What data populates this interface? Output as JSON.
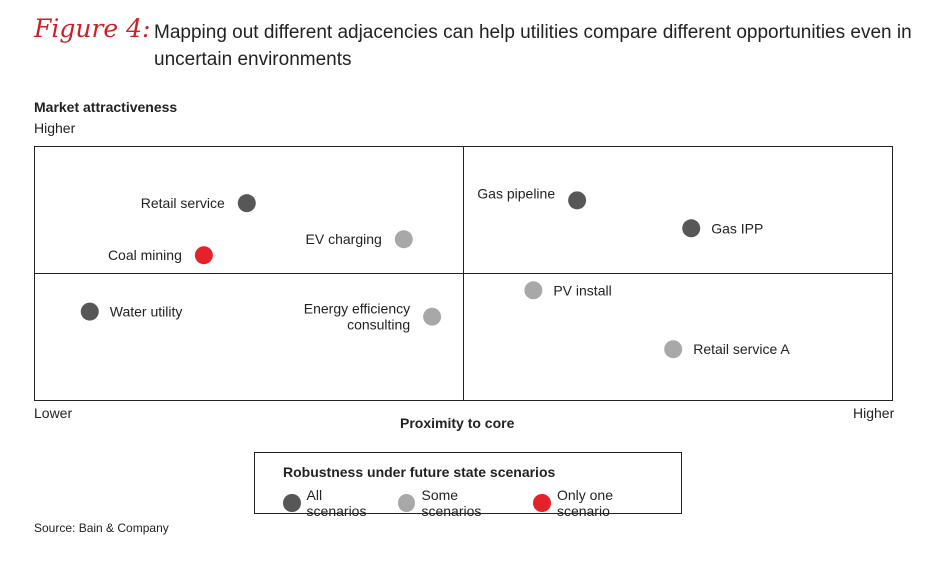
{
  "figure": {
    "label": "Figure 4:",
    "title": "Mapping out different adjacencies can help utilities compare different opportunities even in uncertain environments"
  },
  "chart_data": {
    "type": "scatter",
    "ylabel": "Market attractiveness",
    "y_high_label": "Higher",
    "xlabel": "Proximity to core",
    "x_low_label": "Lower",
    "x_high_label": "Higher",
    "xlim": [
      0,
      100
    ],
    "ylim": [
      0,
      100
    ],
    "grid": "2x2 quadrants",
    "legend_title": "Robustness under future state scenarios",
    "legend": [
      {
        "key": "all",
        "label": "All scenarios",
        "color": "#575757"
      },
      {
        "key": "some",
        "label": "Some scenarios",
        "color": "#a8a8a8"
      },
      {
        "key": "one",
        "label": "Only one scenario",
        "color": "#e4222a"
      }
    ],
    "points": [
      {
        "label": "Retail service",
        "x": 24.8,
        "y": 77.5,
        "category": "all",
        "label_side": "left"
      },
      {
        "label": "Coal mining",
        "x": 19.8,
        "y": 57.0,
        "category": "one",
        "label_side": "left"
      },
      {
        "label": "EV charging",
        "x": 43.1,
        "y": 63.3,
        "category": "some",
        "label_side": "left"
      },
      {
        "label": "Gas pipeline",
        "x": 63.3,
        "y": 78.6,
        "category": "all",
        "label_side": "left"
      },
      {
        "label": "Gas IPP",
        "x": 76.6,
        "y": 67.6,
        "category": "all",
        "label_side": "right"
      },
      {
        "label": "Water utility",
        "x": 6.5,
        "y": 34.8,
        "category": "all",
        "label_side": "right"
      },
      {
        "label": "PV install",
        "x": 58.2,
        "y": 43.2,
        "category": "some",
        "label_side": "right"
      },
      {
        "label": "Energy efficiency consulting",
        "x": 46.4,
        "y": 32.8,
        "category": "some",
        "label_side": "left"
      },
      {
        "label": "Retail service A",
        "x": 74.5,
        "y": 20.0,
        "category": "some",
        "label_side": "right"
      }
    ]
  },
  "source": "Source: Bain & Company"
}
